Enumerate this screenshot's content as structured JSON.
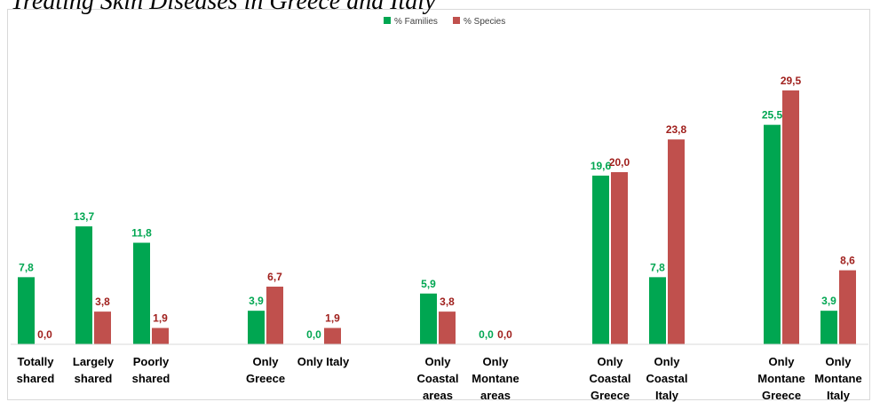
{
  "caption": "Treating Skin Diseases in Greece and Italy",
  "chart_data": {
    "type": "bar",
    "title": "",
    "xlabel": "",
    "ylabel": "",
    "ylim": [
      0,
      32
    ],
    "grid": false,
    "legend_position": "top-center",
    "categories": [
      [
        "Totally",
        "shared"
      ],
      [
        "Largely",
        "shared"
      ],
      [
        "Poorly",
        "shared"
      ],
      [
        "Only",
        "Greece"
      ],
      [
        "Only Italy"
      ],
      [
        "Only",
        "Coastal",
        "areas"
      ],
      [
        "Only",
        "Montane",
        "areas"
      ],
      [
        "Only",
        "Coastal",
        "Greece"
      ],
      [
        "Only",
        "Coastal",
        "Italy"
      ],
      [
        "Only",
        "Montane",
        "Greece"
      ],
      [
        "Only",
        "Montane",
        "Italy"
      ]
    ],
    "series": [
      {
        "name": "% Families",
        "color": "#00a651",
        "label_color": "#00a651",
        "values": [
          7.8,
          13.7,
          11.8,
          3.9,
          0.0,
          5.9,
          0.0,
          19.6,
          7.8,
          25.5,
          3.9
        ],
        "labels": [
          "7,8",
          "13,7",
          "11,8",
          "3,9",
          "0,0",
          "5,9",
          "0,0",
          "19,6",
          "7,8",
          "25,5",
          "3,9"
        ]
      },
      {
        "name": "% Species",
        "color": "#c0504d",
        "label_color": "#a0201d",
        "values": [
          0.0,
          3.8,
          1.9,
          6.7,
          1.9,
          3.8,
          0.0,
          20.0,
          23.8,
          29.5,
          8.6
        ],
        "labels": [
          "0,0",
          "3,8",
          "1,9",
          "6,7",
          "1,9",
          "3,8",
          "0,0",
          "20,0",
          "23,8",
          "29,5",
          "8,6"
        ]
      }
    ]
  }
}
